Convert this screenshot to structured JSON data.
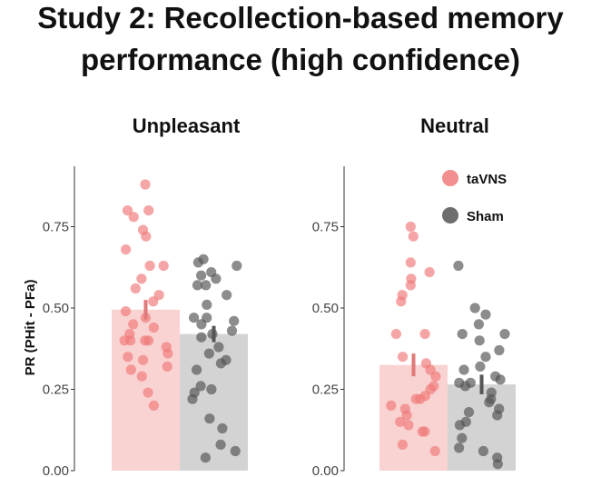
{
  "title_lines": [
    "Study 2: Recollection-based memory",
    "performance (high confidence)"
  ],
  "chart_data": {
    "type": "bar",
    "title": "Study 2: Recollection-based memory performance (high confidence)",
    "ylabel": "PR (PHit - PFa)",
    "ylim": [
      0,
      0.9
    ],
    "yticks": [
      0.0,
      0.25,
      0.5,
      0.75
    ],
    "ytick_labels": [
      "0.00",
      "0.25",
      "0.50",
      "0.75"
    ],
    "grid": false,
    "legend": {
      "placement": "top-right",
      "entries": [
        {
          "name": "taVNS",
          "color": "#f07b7b"
        },
        {
          "name": "Sham",
          "color": "#555555"
        }
      ]
    },
    "colors": {
      "taVNS_bar": "#f9d3d2",
      "Sham_bar": "#d3d3d3",
      "taVNS_point": "#f07b7b",
      "Sham_point": "#555555",
      "taVNS_err": "#e07a7a",
      "Sham_err": "#555555",
      "axis": "#333333"
    },
    "panels": [
      {
        "title": "Unpleasant",
        "series": [
          {
            "name": "taVNS",
            "mean": 0.495,
            "err_low": 0.465,
            "err_high": 0.525,
            "points": [
              0.88,
              0.8,
              0.8,
              0.78,
              0.74,
              0.72,
              0.68,
              0.63,
              0.63,
              0.59,
              0.56,
              0.54,
              0.52,
              0.49,
              0.47,
              0.45,
              0.44,
              0.42,
              0.4,
              0.4,
              0.4,
              0.4,
              0.38,
              0.36,
              0.35,
              0.34,
              0.32,
              0.31,
              0.29,
              0.24,
              0.2
            ]
          },
          {
            "name": "Sham",
            "mean": 0.42,
            "err_low": 0.395,
            "err_high": 0.445,
            "points": [
              0.65,
              0.64,
              0.63,
              0.61,
              0.6,
              0.59,
              0.57,
              0.57,
              0.54,
              0.51,
              0.47,
              0.47,
              0.46,
              0.45,
              0.43,
              0.42,
              0.41,
              0.38,
              0.36,
              0.34,
              0.33,
              0.31,
              0.26,
              0.25,
              0.24,
              0.22,
              0.16,
              0.13,
              0.08,
              0.06,
              0.04
            ]
          }
        ]
      },
      {
        "title": "Neutral",
        "series": [
          {
            "name": "taVNS",
            "mean": 0.325,
            "err_low": 0.29,
            "err_high": 0.36,
            "points": [
              0.75,
              0.72,
              0.64,
              0.61,
              0.59,
              0.57,
              0.54,
              0.52,
              0.42,
              0.42,
              0.35,
              0.33,
              0.31,
              0.29,
              0.26,
              0.25,
              0.23,
              0.22,
              0.22,
              0.2,
              0.19,
              0.17,
              0.15,
              0.14,
              0.12,
              0.12,
              0.08,
              0.06
            ]
          },
          {
            "name": "Sham",
            "mean": 0.265,
            "err_low": 0.235,
            "err_high": 0.295,
            "points": [
              0.63,
              0.5,
              0.48,
              0.45,
              0.42,
              0.42,
              0.4,
              0.37,
              0.35,
              0.32,
              0.31,
              0.29,
              0.28,
              0.27,
              0.27,
              0.26,
              0.24,
              0.22,
              0.21,
              0.19,
              0.18,
              0.17,
              0.15,
              0.14,
              0.1,
              0.07,
              0.06,
              0.04,
              0.02
            ]
          }
        ]
      }
    ]
  }
}
